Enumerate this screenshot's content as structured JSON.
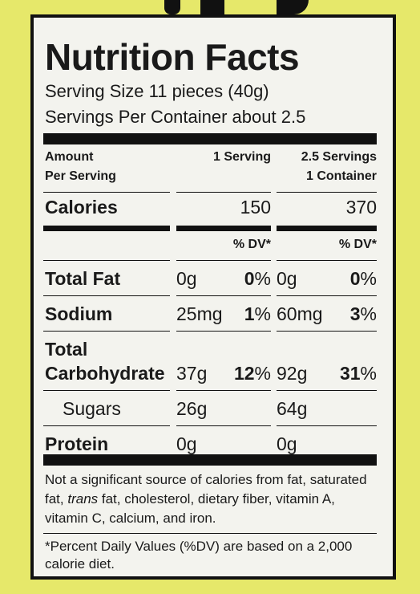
{
  "title": "Nutrition Facts",
  "serving_size": "Serving Size 11 pieces (40g)",
  "servings_per_container": "Servings Per Container about 2.5",
  "header": {
    "amount": [
      "Amount",
      "Per Serving"
    ],
    "column_1": [
      "1 Serving"
    ],
    "column_2": [
      "2.5 Servings",
      "1 Container"
    ]
  },
  "calories": {
    "name": "Calories",
    "column_1": 150,
    "column_2": 370
  },
  "dv_header": {
    "column_1": "% DV*",
    "column_2": "% DV*"
  },
  "rows": [
    {
      "name": [
        "Total Fat"
      ],
      "column_1": {
        "amount": "0g",
        "dv": "0%"
      },
      "column_2": {
        "amount": "0g",
        "dv": "0%"
      }
    },
    {
      "name": [
        "Sodium"
      ],
      "column_1": {
        "amount": "25mg",
        "dv": "1%"
      },
      "column_2": {
        "amount": "60mg",
        "dv": "3%"
      }
    },
    {
      "name": [
        "Total",
        "Carbohydrate"
      ],
      "column_1": {
        "amount": "37g",
        "dv": "12%"
      },
      "column_2": {
        "amount": "92g",
        "dv": "31%"
      }
    },
    {
      "name": [
        "Sugars"
      ],
      "sub": true,
      "column_1": {
        "amount": "26g"
      },
      "column_2": {
        "amount": "64g"
      }
    },
    {
      "name": [
        "Protein"
      ],
      "column_1": {
        "amount": "0g"
      },
      "column_2": {
        "amount": "0g"
      }
    }
  ],
  "footnote_1": [
    "Not a significant source of calories from fat, saturated fat, ",
    "trans",
    " fat, cholesterol, dietary fiber, vitamin A, vitamin C, calcium, and iron."
  ],
  "footnote_2": "*Percent Daily Values (%DV) are based on a 2,000 calorie diet."
}
